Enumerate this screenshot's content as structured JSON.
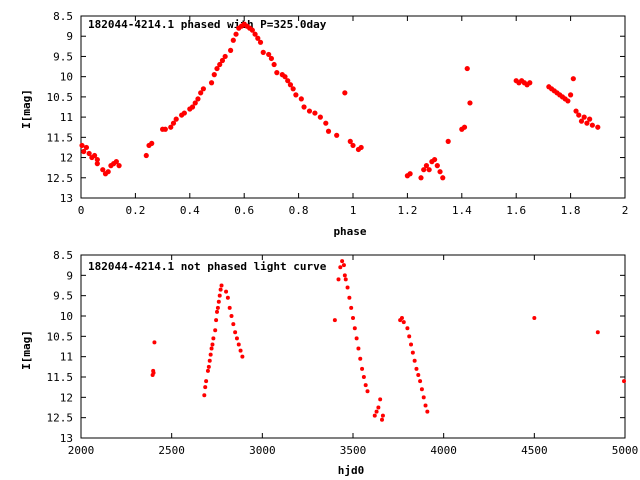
{
  "chart_data": [
    {
      "type": "scatter",
      "title": "182044-4214.1 phased with P=325.0day",
      "xlabel": "phase",
      "ylabel": "I[mag]",
      "xlim": [
        0,
        2
      ],
      "ylim": [
        13,
        8.5
      ],
      "y_inverted": true,
      "x_ticks": [
        "0",
        "0.2",
        "0.4",
        "0.6",
        "0.8",
        "1",
        "1.2",
        "1.4",
        "1.6",
        "1.8",
        "2"
      ],
      "y_ticks": [
        "8.5",
        "9",
        "9.5",
        "10",
        "10.5",
        "11",
        "11.5",
        "12",
        "12.5",
        "13"
      ],
      "grid": false,
      "series": [
        {
          "color": "#ff0000",
          "points": [
            [
              0.0,
              11.7
            ],
            [
              0.01,
              11.85
            ],
            [
              0.02,
              11.75
            ],
            [
              0.03,
              11.9
            ],
            [
              0.04,
              12.0
            ],
            [
              0.05,
              11.95
            ],
            [
              0.06,
              12.05
            ],
            [
              0.06,
              12.15
            ],
            [
              0.08,
              12.3
            ],
            [
              0.09,
              12.4
            ],
            [
              0.1,
              12.35
            ],
            [
              0.11,
              12.2
            ],
            [
              0.12,
              12.15
            ],
            [
              0.13,
              12.1
            ],
            [
              0.14,
              12.2
            ],
            [
              0.24,
              11.95
            ],
            [
              0.25,
              11.7
            ],
            [
              0.26,
              11.65
            ],
            [
              0.3,
              11.3
            ],
            [
              0.31,
              11.3
            ],
            [
              0.33,
              11.25
            ],
            [
              0.34,
              11.15
            ],
            [
              0.35,
              11.05
            ],
            [
              0.37,
              10.95
            ],
            [
              0.38,
              10.9
            ],
            [
              0.4,
              10.8
            ],
            [
              0.41,
              10.75
            ],
            [
              0.42,
              10.65
            ],
            [
              0.43,
              10.55
            ],
            [
              0.44,
              10.4
            ],
            [
              0.45,
              10.3
            ],
            [
              0.48,
              10.15
            ],
            [
              0.49,
              9.95
            ],
            [
              0.5,
              9.8
            ],
            [
              0.51,
              9.7
            ],
            [
              0.52,
              9.6
            ],
            [
              0.53,
              9.5
            ],
            [
              0.55,
              9.35
            ],
            [
              0.56,
              9.1
            ],
            [
              0.57,
              8.95
            ],
            [
              0.58,
              8.8
            ],
            [
              0.59,
              8.75
            ],
            [
              0.6,
              8.7
            ],
            [
              0.61,
              8.75
            ],
            [
              0.62,
              8.8
            ],
            [
              0.63,
              8.85
            ],
            [
              0.64,
              8.95
            ],
            [
              0.65,
              9.05
            ],
            [
              0.66,
              9.15
            ],
            [
              0.67,
              9.4
            ],
            [
              0.69,
              9.45
            ],
            [
              0.7,
              9.55
            ],
            [
              0.71,
              9.7
            ],
            [
              0.72,
              9.9
            ],
            [
              0.74,
              9.95
            ],
            [
              0.75,
              10.0
            ],
            [
              0.76,
              10.1
            ],
            [
              0.77,
              10.2
            ],
            [
              0.78,
              10.3
            ],
            [
              0.79,
              10.45
            ],
            [
              0.81,
              10.55
            ],
            [
              0.82,
              10.75
            ],
            [
              0.84,
              10.85
            ],
            [
              0.86,
              10.9
            ],
            [
              0.88,
              11.0
            ],
            [
              0.9,
              11.15
            ],
            [
              0.91,
              11.35
            ],
            [
              0.94,
              11.45
            ],
            [
              0.97,
              10.4
            ],
            [
              0.99,
              11.6
            ],
            [
              1.0,
              11.7
            ],
            [
              1.02,
              11.8
            ],
            [
              1.03,
              11.75
            ],
            [
              1.2,
              12.45
            ],
            [
              1.21,
              12.4
            ],
            [
              1.25,
              12.5
            ],
            [
              1.26,
              12.3
            ],
            [
              1.27,
              12.2
            ],
            [
              1.28,
              12.3
            ],
            [
              1.29,
              12.1
            ],
            [
              1.3,
              12.05
            ],
            [
              1.31,
              12.2
            ],
            [
              1.32,
              12.35
            ],
            [
              1.33,
              12.5
            ],
            [
              1.35,
              11.6
            ],
            [
              1.4,
              11.3
            ],
            [
              1.41,
              11.25
            ],
            [
              1.43,
              10.65
            ],
            [
              1.42,
              9.8
            ],
            [
              1.6,
              10.1
            ],
            [
              1.61,
              10.15
            ],
            [
              1.62,
              10.1
            ],
            [
              1.63,
              10.15
            ],
            [
              1.64,
              10.2
            ],
            [
              1.65,
              10.15
            ],
            [
              1.72,
              10.25
            ],
            [
              1.73,
              10.3
            ],
            [
              1.74,
              10.35
            ],
            [
              1.75,
              10.4
            ],
            [
              1.76,
              10.45
            ],
            [
              1.77,
              10.5
            ],
            [
              1.78,
              10.55
            ],
            [
              1.79,
              10.6
            ],
            [
              1.8,
              10.45
            ],
            [
              1.81,
              10.05
            ],
            [
              1.82,
              10.85
            ],
            [
              1.83,
              10.95
            ],
            [
              1.84,
              11.1
            ],
            [
              1.85,
              11.0
            ],
            [
              1.86,
              11.15
            ],
            [
              1.87,
              11.05
            ],
            [
              1.88,
              11.2
            ],
            [
              1.9,
              11.25
            ]
          ]
        }
      ]
    },
    {
      "type": "scatter",
      "title": "182044-4214.1 not phased light curve",
      "xlabel": "hjd0",
      "ylabel": "I[mag]",
      "xlim": [
        2000,
        5000
      ],
      "ylim": [
        13,
        8.5
      ],
      "y_inverted": true,
      "x_ticks": [
        "2000",
        "2500",
        "3000",
        "3500",
        "4000",
        "4500",
        "5000"
      ],
      "y_ticks": [
        "8.5",
        "9",
        "9.5",
        "10",
        "10.5",
        "11",
        "11.5",
        "12",
        "12.5",
        "13"
      ],
      "grid": false,
      "series": [
        {
          "color": "#ff0000",
          "points": [
            [
              2395,
              11.45
            ],
            [
              2398,
              11.35
            ],
            [
              2400,
              11.4
            ],
            [
              2405,
              10.65
            ],
            [
              2680,
              11.95
            ],
            [
              2685,
              11.75
            ],
            [
              2690,
              11.6
            ],
            [
              2700,
              11.35
            ],
            [
              2705,
              11.25
            ],
            [
              2710,
              11.1
            ],
            [
              2715,
              10.95
            ],
            [
              2720,
              10.8
            ],
            [
              2725,
              10.7
            ],
            [
              2730,
              10.55
            ],
            [
              2740,
              10.35
            ],
            [
              2745,
              10.1
            ],
            [
              2750,
              9.9
            ],
            [
              2755,
              9.8
            ],
            [
              2760,
              9.65
            ],
            [
              2765,
              9.5
            ],
            [
              2770,
              9.35
            ],
            [
              2775,
              9.25
            ],
            [
              2800,
              9.4
            ],
            [
              2810,
              9.55
            ],
            [
              2820,
              9.8
            ],
            [
              2830,
              10.0
            ],
            [
              2840,
              10.2
            ],
            [
              2850,
              10.4
            ],
            [
              2860,
              10.55
            ],
            [
              2870,
              10.7
            ],
            [
              2880,
              10.85
            ],
            [
              2890,
              11.0
            ],
            [
              3400,
              10.1
            ],
            [
              3420,
              9.1
            ],
            [
              3430,
              8.8
            ],
            [
              3440,
              8.65
            ],
            [
              3450,
              8.75
            ],
            [
              3455,
              9.0
            ],
            [
              3460,
              9.1
            ],
            [
              3470,
              9.3
            ],
            [
              3480,
              9.55
            ],
            [
              3490,
              9.8
            ],
            [
              3500,
              10.05
            ],
            [
              3510,
              10.3
            ],
            [
              3520,
              10.55
            ],
            [
              3530,
              10.8
            ],
            [
              3540,
              11.05
            ],
            [
              3550,
              11.3
            ],
            [
              3560,
              11.5
            ],
            [
              3570,
              11.7
            ],
            [
              3580,
              11.85
            ],
            [
              3620,
              12.45
            ],
            [
              3630,
              12.35
            ],
            [
              3640,
              12.25
            ],
            [
              3650,
              12.05
            ],
            [
              3660,
              12.55
            ],
            [
              3665,
              12.45
            ],
            [
              3760,
              10.1
            ],
            [
              3770,
              10.05
            ],
            [
              3780,
              10.15
            ],
            [
              3800,
              10.3
            ],
            [
              3810,
              10.5
            ],
            [
              3820,
              10.7
            ],
            [
              3830,
              10.9
            ],
            [
              3840,
              11.1
            ],
            [
              3850,
              11.3
            ],
            [
              3860,
              11.45
            ],
            [
              3870,
              11.6
            ],
            [
              3880,
              11.8
            ],
            [
              3890,
              12.0
            ],
            [
              3900,
              12.2
            ],
            [
              3910,
              12.35
            ],
            [
              4500,
              10.05
            ],
            [
              4850,
              10.4
            ],
            [
              5000,
              11.6
            ]
          ]
        }
      ]
    }
  ]
}
